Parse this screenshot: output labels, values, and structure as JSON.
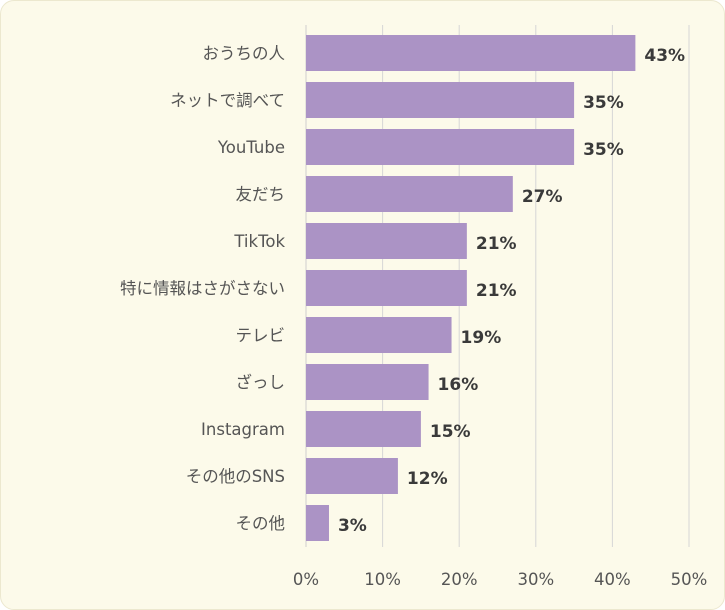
{
  "chart_data": {
    "type": "bar",
    "orientation": "horizontal",
    "categories": [
      "おうちの人",
      "ネットで調べて",
      "YouTube",
      "友だち",
      "TikTok",
      "特に情報はさがさない",
      "テレビ",
      "ざっし",
      "Instagram",
      "その他のSNS",
      "その他"
    ],
    "values": [
      43,
      35,
      35,
      27,
      21,
      21,
      19,
      16,
      15,
      12,
      3
    ],
    "value_labels": [
      "43%",
      "35%",
      "35%",
      "27%",
      "21%",
      "21%",
      "19%",
      "16%",
      "15%",
      "12%",
      "3%"
    ],
    "x_ticks": [
      "0%",
      "10%",
      "20%",
      "30%",
      "40%",
      "50%"
    ],
    "xlim": [
      0,
      50
    ],
    "grid": "vertical",
    "legend": "none",
    "bar_color": "#ab93c5",
    "background_color": "#fcfaea",
    "grid_color": "#d6d6d6"
  }
}
